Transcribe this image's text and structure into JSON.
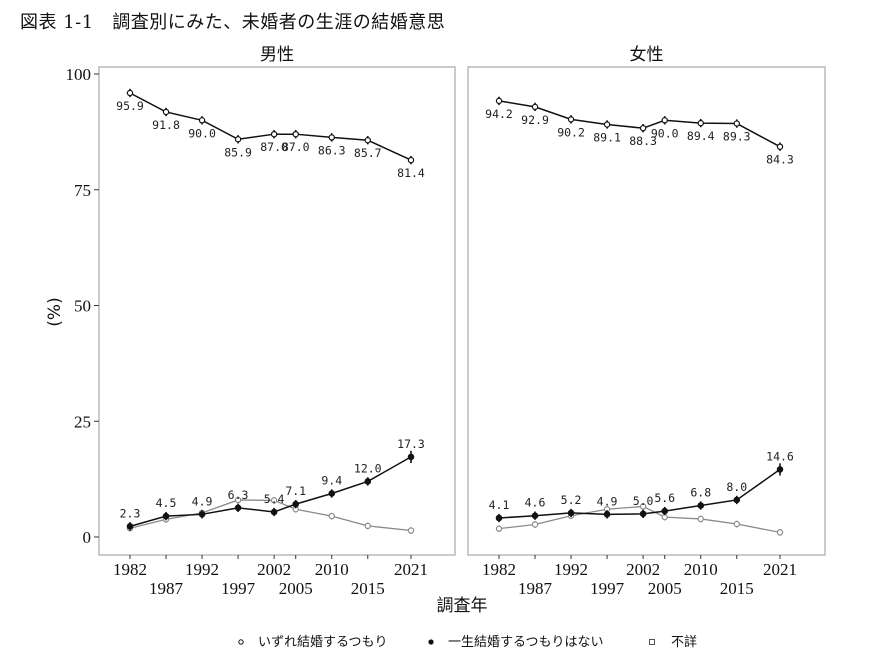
{
  "figure": {
    "title": "図表 1-1　調査別にみた、未婚者の生涯の結婚意思"
  },
  "chart_data": {
    "type": "line",
    "title": "図表 1-1 調査別にみた、未婚者の生涯の結婚意思",
    "xlabel": "調査年",
    "ylabel": "(%)",
    "ylim": [
      0,
      100
    ],
    "yticks": [
      0,
      25,
      50,
      75,
      100
    ],
    "x": [
      1982,
      1987,
      1992,
      1997,
      2002,
      2005,
      2010,
      2015,
      2021
    ],
    "xtick_labels_top": [
      "1982",
      "1992",
      "2002",
      "2010",
      "2021"
    ],
    "xtick_labels_bottom": [
      "1987",
      "1997",
      "2005",
      "2015"
    ],
    "grid": false,
    "legend_position": "bottom",
    "legend": [
      {
        "key": "intend",
        "label": "いずれ結婚するつもり",
        "marker": "○"
      },
      {
        "key": "never",
        "label": "一生結婚するつもりはない",
        "marker": "●"
      },
      {
        "key": "unknown",
        "label": "不詳",
        "marker": "□"
      }
    ],
    "panels": [
      {
        "label": "男性",
        "series": [
          {
            "name": "いずれ結婚するつもり",
            "key": "intend",
            "color": "#111111",
            "labeled": true,
            "values": [
              95.9,
              91.8,
              90.0,
              85.9,
              87.0,
              87.0,
              86.3,
              85.7,
              81.4
            ],
            "labels": [
              "95.9",
              "91.8",
              "90.0",
              "85.9",
              "87.0",
              "87.0",
              "86.3",
              "85.7",
              "81.4"
            ]
          },
          {
            "name": "一生結婚するつもりはない",
            "key": "never",
            "color": "#111111",
            "labeled": true,
            "values": [
              2.3,
              4.5,
              4.9,
              6.3,
              5.4,
              7.1,
              9.4,
              12.0,
              17.3
            ],
            "labels": [
              "2.3",
              "4.5",
              "4.9",
              "6.3",
              "5.4",
              "7.1",
              "9.4",
              "12.0",
              "17.3"
            ]
          },
          {
            "name": "不詳",
            "key": "unknown",
            "color": "#8a8a8a",
            "labeled": false,
            "values": [
              1.9,
              3.8,
              5.2,
              8.0,
              7.9,
              6.0,
              4.5,
              2.4,
              1.4
            ]
          }
        ]
      },
      {
        "label": "女性",
        "series": [
          {
            "name": "いずれ結婚するつもり",
            "key": "intend",
            "color": "#111111",
            "labeled": true,
            "values": [
              94.2,
              92.9,
              90.2,
              89.1,
              88.3,
              90.0,
              89.4,
              89.3,
              84.3
            ],
            "labels": [
              "94.2",
              "92.9",
              "90.2",
              "89.1",
              "88.3",
              "90.0",
              "89.4",
              "89.3",
              "84.3"
            ]
          },
          {
            "name": "一生結婚するつもりはない",
            "key": "never",
            "color": "#111111",
            "labeled": true,
            "values": [
              4.1,
              4.6,
              5.2,
              4.9,
              5.0,
              5.6,
              6.8,
              8.0,
              14.6
            ],
            "labels": [
              "4.1",
              "4.6",
              "5.2",
              "4.9",
              "5.0",
              "5.6",
              "6.8",
              "8.0",
              "14.6"
            ]
          },
          {
            "name": "不詳",
            "key": "unknown",
            "color": "#8a8a8a",
            "labeled": false,
            "values": [
              1.8,
              2.7,
              4.6,
              6.0,
              6.6,
              4.3,
              3.9,
              2.8,
              1.0
            ]
          }
        ]
      }
    ]
  }
}
